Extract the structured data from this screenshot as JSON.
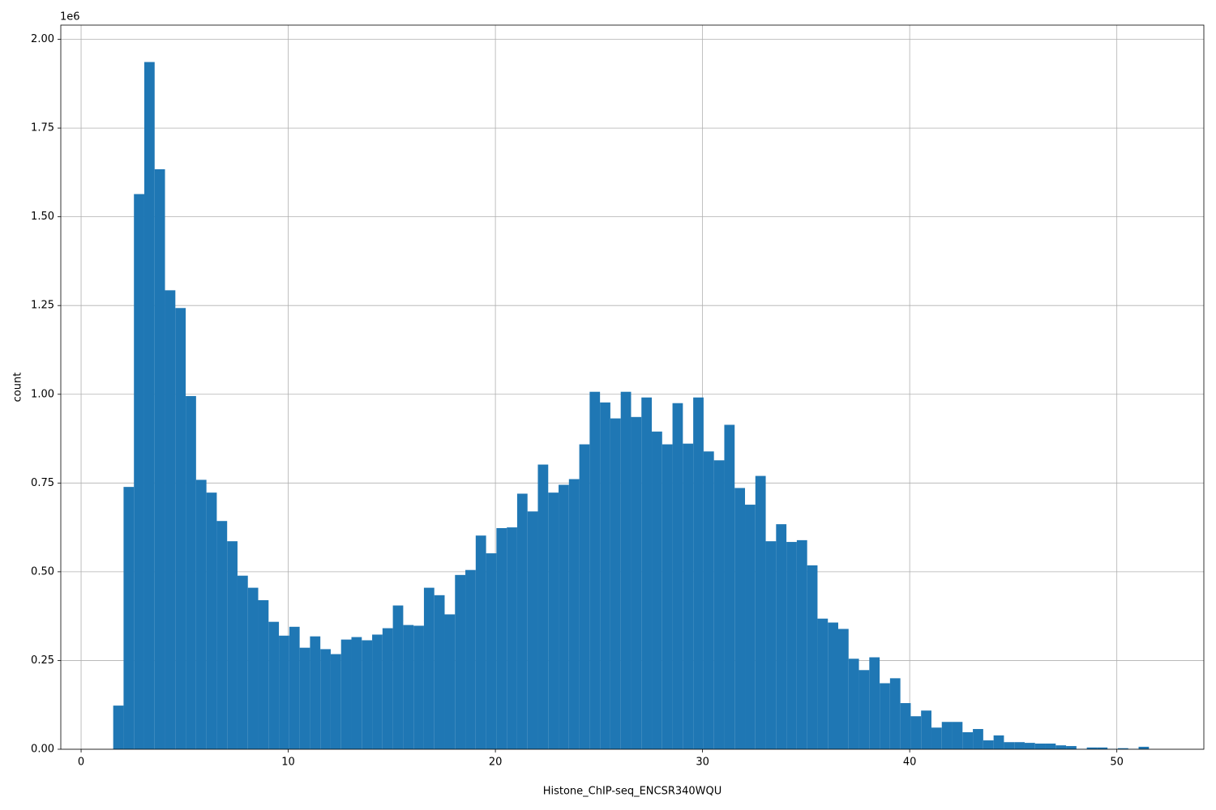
{
  "chart_data": {
    "type": "histogram",
    "x_label": "Histone_ChIP-seq_ENCSR340WQU",
    "y_label": "count",
    "y_multiplier": "1e6",
    "color": "#1f77b4",
    "grid": true,
    "bins": [
      1.55,
      2.05,
      2.55,
      3.05,
      3.55,
      4.05,
      4.55,
      5.05,
      5.55,
      6.05,
      6.55,
      7.05,
      7.55,
      8.05,
      8.55,
      9.05,
      9.55,
      10.05,
      10.55,
      11.05,
      11.55,
      12.05,
      12.55,
      13.05,
      13.55,
      14.05,
      14.55,
      15.05,
      15.55,
      16.05,
      16.55,
      17.05,
      17.55,
      18.05,
      18.55,
      19.05,
      19.55,
      20.05,
      20.55,
      21.05,
      21.55,
      22.05,
      22.55,
      23.05,
      23.55,
      24.05,
      24.55,
      25.05,
      25.55,
      26.05,
      26.55,
      27.05,
      27.55,
      28.05,
      28.55,
      29.05,
      29.55,
      30.05,
      30.55,
      31.05,
      31.55,
      32.05,
      32.55,
      33.05,
      33.55,
      34.05,
      34.55,
      35.05,
      35.55,
      36.05,
      36.55,
      37.05,
      37.55,
      38.05,
      38.55,
      39.05,
      39.55,
      40.05,
      40.55,
      41.05,
      41.55,
      42.05,
      42.55,
      43.05,
      43.55,
      44.05,
      44.55,
      45.05,
      45.55,
      46.05,
      46.55,
      47.05,
      47.55,
      48.05,
      48.55,
      49.05,
      49.55,
      50.05,
      50.55,
      51.05,
      51.55
    ],
    "values": [
      0.123,
      0.739,
      1.564,
      1.936,
      1.634,
      1.293,
      1.243,
      0.995,
      0.759,
      0.723,
      0.643,
      0.586,
      0.489,
      0.455,
      0.42,
      0.359,
      0.32,
      0.345,
      0.286,
      0.318,
      0.282,
      0.268,
      0.309,
      0.316,
      0.307,
      0.323,
      0.341,
      0.405,
      0.35,
      0.348,
      0.455,
      0.434,
      0.38,
      0.491,
      0.505,
      0.602,
      0.552,
      0.623,
      0.625,
      0.72,
      0.67,
      0.802,
      0.723,
      0.745,
      0.761,
      0.859,
      1.007,
      0.977,
      0.932,
      1.007,
      0.936,
      0.991,
      0.895,
      0.859,
      0.975,
      0.861,
      0.991,
      0.839,
      0.814,
      0.914,
      0.736,
      0.689,
      0.77,
      0.586,
      0.634,
      0.584,
      0.589,
      0.518,
      0.368,
      0.357,
      0.339,
      0.255,
      0.223,
      0.259,
      0.186,
      0.2,
      0.13,
      0.093,
      0.109,
      0.061,
      0.077,
      0.077,
      0.048,
      0.057,
      0.025,
      0.039,
      0.02,
      0.02,
      0.018,
      0.016,
      0.016,
      0.011,
      0.009,
      0.001,
      0.005,
      0.005,
      0.001,
      0.003,
      0.001,
      0.007
    ],
    "xlim": [
      -0.98,
      54.2
    ],
    "xticks": [
      0,
      10,
      20,
      30,
      40,
      50
    ],
    "ylim": [
      0,
      2.04
    ],
    "yticks": [
      {
        "value": 0,
        "label": "0.00"
      },
      0.25,
      {
        "value": 0.5,
        "label": "0.50"
      },
      0.75,
      {
        "value": 1,
        "label": "1.00"
      },
      1.25,
      {
        "value": 1.5,
        "label": "1.50"
      },
      1.75,
      {
        "value": 2,
        "label": "2.00"
      }
    ]
  }
}
